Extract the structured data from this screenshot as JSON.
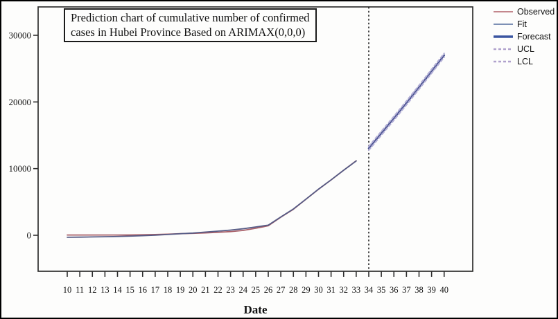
{
  "title": {
    "line1": "Prediction chart of cumulative number of confirmed",
    "line2": "cases in Hubei Province Based on ARIMAX(0,0,0)"
  },
  "x_axis": {
    "title": "Date"
  },
  "legend": {
    "items": [
      {
        "label": "Observed",
        "color": "#c4878d",
        "style": "solid"
      },
      {
        "label": "Fit",
        "color": "#7d90b5",
        "style": "solid"
      },
      {
        "label": "Forecast",
        "color": "#3a55a0",
        "style": "solid-thick"
      },
      {
        "label": "UCL",
        "color": "#b0a2cd",
        "style": "dashed"
      },
      {
        "label": "LCL",
        "color": "#b0a2cd",
        "style": "dashed"
      }
    ]
  },
  "chart_data": {
    "type": "line",
    "title": "Prediction chart of cumulative number of confirmed cases in Hubei Province Based on ARIMAX(0,0,0)",
    "xlabel": "Date",
    "ylabel": "",
    "grid": false,
    "legend_position": "top-right",
    "x_range": [
      10,
      40
    ],
    "x_ticks": [
      10,
      11,
      12,
      13,
      14,
      15,
      16,
      17,
      18,
      19,
      20,
      21,
      22,
      23,
      24,
      25,
      26,
      27,
      28,
      29,
      30,
      31,
      32,
      33,
      34,
      35,
      36,
      37,
      38,
      39,
      40
    ],
    "y_ticks": [
      0,
      10000,
      20000,
      30000
    ],
    "forecast_boundary_x": 34,
    "series": [
      {
        "name": "Observed",
        "color": "#a85f68",
        "width": 1.8,
        "dash": null,
        "x": [
          10,
          11,
          12,
          13,
          14,
          15,
          16,
          17,
          18,
          19,
          20,
          21,
          22,
          23,
          24,
          25,
          26,
          27,
          28,
          29,
          30,
          31,
          32,
          33
        ],
        "values": [
          41,
          41,
          41,
          41,
          41,
          48,
          70,
          110,
          170,
          240,
          290,
          350,
          444,
          549,
          729,
          1052,
          1423,
          2714,
          3900,
          5400,
          6900,
          8300,
          9750,
          11177
        ]
      },
      {
        "name": "Fit",
        "color": "#565b85",
        "width": 1.8,
        "dash": null,
        "x": [
          10,
          11,
          12,
          13,
          14,
          15,
          16,
          17,
          18,
          19,
          20,
          21,
          22,
          23,
          24,
          25,
          26,
          27,
          28,
          29,
          30,
          31,
          32,
          33
        ],
        "values": [
          -300,
          -280,
          -250,
          -220,
          -180,
          -130,
          -60,
          20,
          120,
          230,
          330,
          480,
          620,
          780,
          980,
          1250,
          1520,
          2750,
          3950,
          5420,
          6920,
          8310,
          9760,
          11150
        ]
      },
      {
        "name": "Forecast",
        "color": "#47518e",
        "width": 2.6,
        "dash": null,
        "x": [
          34,
          35,
          36,
          37,
          38,
          39,
          40
        ],
        "values": [
          13050,
          15300,
          17550,
          19850,
          22200,
          24600,
          27000
        ]
      },
      {
        "name": "UCL",
        "color": "#b2aed6",
        "width": 2.2,
        "dash": "4 3.5",
        "x": [
          34,
          35,
          36,
          37,
          38,
          39,
          40
        ],
        "values": [
          13330,
          15580,
          17830,
          20130,
          22480,
          24880,
          27280
        ]
      },
      {
        "name": "LCL",
        "color": "#b2aed6",
        "width": 2.2,
        "dash": "4 3.5",
        "x": [
          34,
          35,
          36,
          37,
          38,
          39,
          40
        ],
        "values": [
          12770,
          15020,
          17270,
          19570,
          21920,
          24320,
          26720
        ]
      }
    ]
  }
}
